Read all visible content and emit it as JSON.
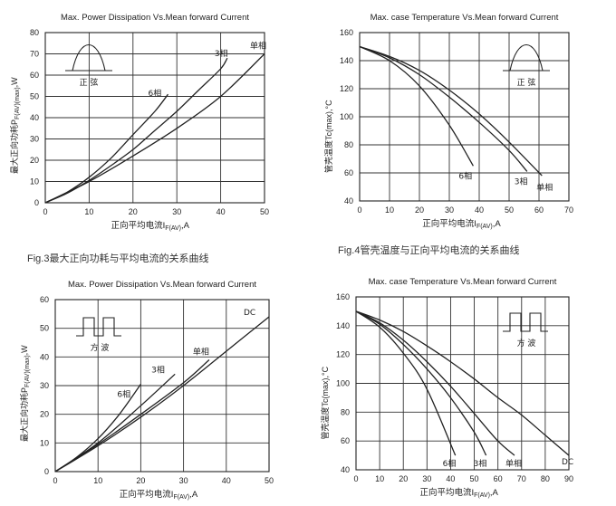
{
  "captions": {
    "fig3": "Fig.3最大正向功耗与平均电流的关系曲线",
    "fig4": "Fig.4管壳温度与正向平均电流的关系曲线"
  },
  "chart_data": [
    {
      "type": "line",
      "title": "Max. Power Dissipation Vs.Mean forward Current",
      "xlabel": "正向平均电流IF(AV),A",
      "ylabel": "最大正向功耗PF(AV)(max),W",
      "xlim": [
        0,
        50
      ],
      "ylim": [
        0,
        80
      ],
      "xticks": [
        0,
        10,
        20,
        30,
        40,
        50
      ],
      "yticks": [
        0,
        10,
        20,
        30,
        40,
        50,
        60,
        70,
        80
      ],
      "grid": true,
      "inset": {
        "shape": "half-sine",
        "label": "正 弦"
      },
      "series": [
        {
          "name": "6相",
          "x": [
            0,
            5,
            10,
            15,
            20,
            25,
            28
          ],
          "y": [
            0,
            5,
            12,
            21,
            32,
            43,
            51
          ]
        },
        {
          "name": "3相",
          "x": [
            0,
            5,
            10,
            15,
            20,
            25,
            30,
            35,
            40,
            41.5
          ],
          "y": [
            0,
            4.5,
            10.5,
            17.5,
            25,
            34,
            43,
            53,
            63,
            68
          ]
        },
        {
          "name": "单相",
          "x": [
            0,
            10,
            20,
            30,
            40,
            50
          ],
          "y": [
            0,
            10,
            22,
            35,
            50,
            70
          ]
        }
      ]
    },
    {
      "type": "line",
      "title": "Max. case Temperature Vs.Mean forward Current",
      "xlabel": "正向平均电流IF(AV),A",
      "ylabel": "管壳温度Tc(max),°C",
      "xlim": [
        0,
        70
      ],
      "ylim": [
        40,
        160
      ],
      "xticks": [
        0,
        10,
        20,
        30,
        40,
        50,
        60,
        70
      ],
      "yticks": [
        40,
        60,
        80,
        100,
        120,
        140,
        160
      ],
      "grid": true,
      "inset": {
        "shape": "half-sine",
        "label": "正 弦"
      },
      "series": [
        {
          "name": "6相",
          "x": [
            0,
            10,
            20,
            30,
            38
          ],
          "y": [
            150,
            140,
            122,
            94,
            65
          ]
        },
        {
          "name": "3相",
          "x": [
            0,
            10,
            20,
            30,
            40,
            50,
            56
          ],
          "y": [
            150,
            142,
            130,
            114,
            96,
            76,
            61
          ]
        },
        {
          "name": "单相",
          "x": [
            0,
            10,
            20,
            30,
            40,
            50,
            61
          ],
          "y": [
            150,
            143,
            133,
            119,
            102,
            82,
            58
          ]
        }
      ]
    },
    {
      "type": "line",
      "title": "Max. Power Dissipation Vs.Mean forward Current",
      "xlabel": "正向平均电流IF(AV),A",
      "ylabel": "最大正向功耗PF(AV)(max),W",
      "xlim": [
        0,
        50
      ],
      "ylim": [
        0,
        60
      ],
      "xticks": [
        0,
        10,
        20,
        30,
        40,
        50
      ],
      "yticks": [
        0,
        10,
        20,
        30,
        40,
        50,
        60
      ],
      "grid": true,
      "inset": {
        "shape": "square-wave",
        "label": "方 波"
      },
      "series": [
        {
          "name": "6相",
          "x": [
            0,
            5,
            10,
            15,
            20
          ],
          "y": [
            0,
            5,
            11.5,
            20,
            30.5
          ]
        },
        {
          "name": "3相",
          "x": [
            0,
            10,
            20,
            28
          ],
          "y": [
            0,
            10,
            23,
            34
          ]
        },
        {
          "name": "单相",
          "x": [
            0,
            10,
            20,
            30,
            36
          ],
          "y": [
            0,
            9.5,
            20,
            31,
            39
          ]
        },
        {
          "name": "DC",
          "x": [
            0,
            10,
            20,
            30,
            40,
            50
          ],
          "y": [
            0,
            9,
            19,
            30,
            42,
            54
          ]
        }
      ]
    },
    {
      "type": "line",
      "title": "Max. case Temperature Vs.Mean forward Current",
      "xlabel": "正向平均电流IF(AV),A",
      "ylabel": "管壳温度Tc(max),°C",
      "xlim": [
        0,
        90
      ],
      "ylim": [
        40,
        160
      ],
      "xticks": [
        0,
        10,
        20,
        30,
        40,
        50,
        60,
        70,
        80,
        90
      ],
      "yticks": [
        40,
        60,
        80,
        100,
        120,
        140,
        160
      ],
      "grid": true,
      "inset": {
        "shape": "square-wave",
        "label": "方 波"
      },
      "series": [
        {
          "name": "6相",
          "x": [
            0,
            10,
            20,
            30,
            42
          ],
          "y": [
            150,
            139,
            121,
            96,
            50
          ]
        },
        {
          "name": "3相",
          "x": [
            0,
            10,
            20,
            30,
            40,
            50,
            55
          ],
          "y": [
            150,
            141,
            127,
            110,
            90,
            66,
            50
          ]
        },
        {
          "name": "单相",
          "x": [
            0,
            10,
            20,
            30,
            40,
            50,
            60,
            67
          ],
          "y": [
            150,
            142,
            130,
            115,
            98,
            79,
            60,
            50
          ]
        },
        {
          "name": "DC",
          "x": [
            0,
            10,
            20,
            30,
            40,
            50,
            60,
            70,
            80,
            90
          ],
          "y": [
            150,
            144,
            136,
            126,
            115,
            103,
            90,
            78,
            64,
            50
          ]
        }
      ]
    }
  ]
}
